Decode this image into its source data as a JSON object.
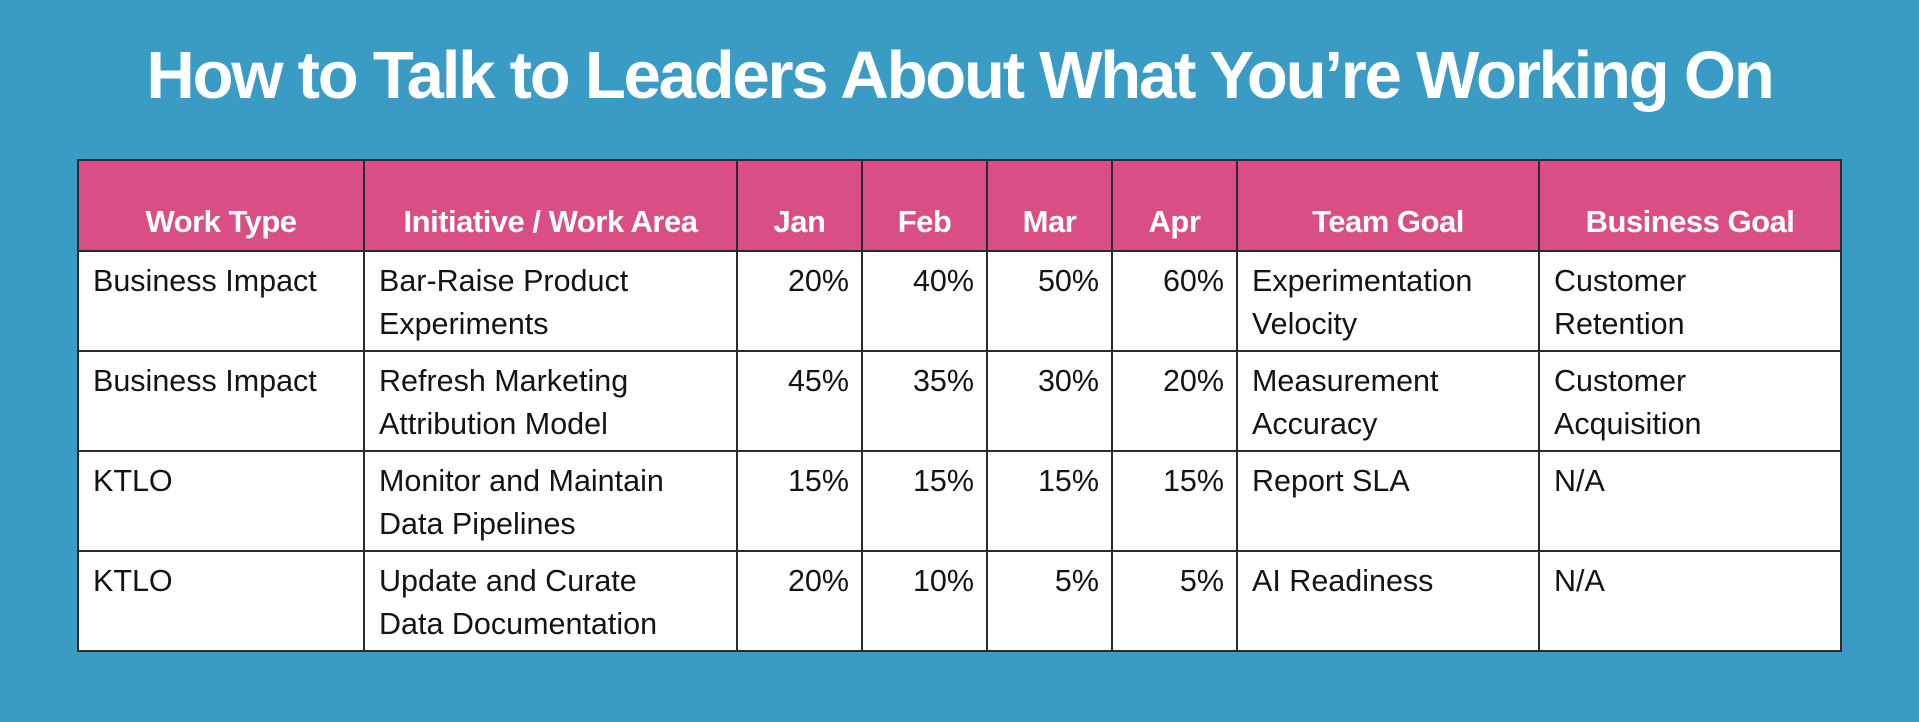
{
  "title": "How to Talk to Leaders About What You’re Working On",
  "table": {
    "headers": [
      "Work Type",
      "Initiative / Work Area",
      "Jan",
      "Feb",
      "Mar",
      "Apr",
      "Team Goal",
      "Business Goal"
    ],
    "rows": [
      {
        "work_type": "Business Impact",
        "initiative": [
          "Bar-Raise Product",
          "Experiments"
        ],
        "jan": "20%",
        "feb": "40%",
        "mar": "50%",
        "apr": "60%",
        "team_goal": [
          "Experimentation",
          "Velocity"
        ],
        "business_goal": [
          "Customer",
          "Retention"
        ]
      },
      {
        "work_type": "Business Impact",
        "initiative": [
          "Refresh Marketing",
          "Attribution Model"
        ],
        "jan": "45%",
        "feb": "35%",
        "mar": "30%",
        "apr": "20%",
        "team_goal": [
          "Measurement",
          "Accuracy"
        ],
        "business_goal": [
          "Customer",
          "Acquisition"
        ]
      },
      {
        "work_type": "KTLO",
        "initiative": [
          "Monitor and Maintain",
          "Data Pipelines"
        ],
        "jan": "15%",
        "feb": "15%",
        "mar": "15%",
        "apr": "15%",
        "team_goal": [
          "Report SLA"
        ],
        "business_goal": [
          "N/A"
        ]
      },
      {
        "work_type": "KTLO",
        "initiative": [
          "Update and Curate",
          "Data Documentation"
        ],
        "jan": "20%",
        "feb": "10%",
        "mar": "5%",
        "apr": "5%",
        "team_goal": [
          "AI Readiness"
        ],
        "business_goal": [
          "N/A"
        ]
      }
    ]
  },
  "colors": {
    "background": "#3a9cc5",
    "header_fill": "#d94f85",
    "header_text": "#ffffff",
    "cell_fill": "#ffffff",
    "cell_text": "#141414",
    "border": "#2b2b2b"
  }
}
